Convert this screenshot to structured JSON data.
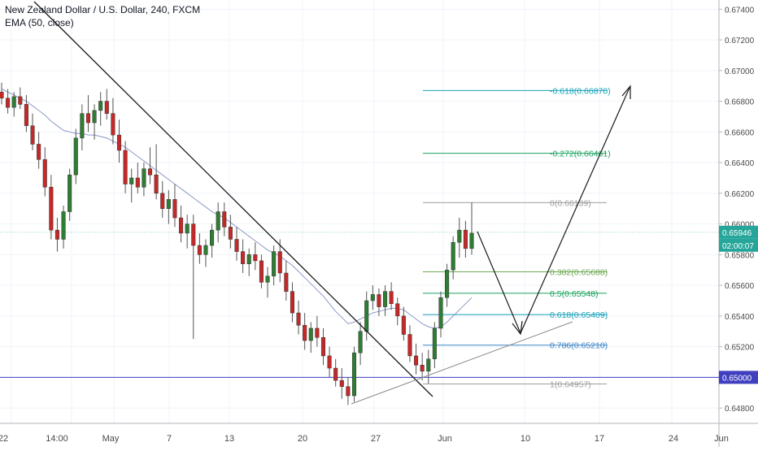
{
  "chart_data": {
    "type": "candlestick",
    "title": "New Zealand Dollar / U.S. Dollar, 240, FXCM",
    "indicator_label": "EMA (50, close)",
    "ylim": [
      0.647,
      0.6746
    ],
    "y_ticks": [
      "0.67400",
      "0.67200",
      "0.67000",
      "0.66800",
      "0.66600",
      "0.66400",
      "0.66200",
      "0.66000",
      "0.65800",
      "0.65600",
      "0.65400",
      "0.65200",
      "0.65000",
      "0.64800"
    ],
    "x_ticks": [
      "22",
      "14:00",
      "May",
      "7",
      "13",
      "20",
      "27",
      "Jun",
      "10",
      "17",
      "24",
      "Jun"
    ],
    "current_price": "0.65946",
    "countdown": "02:00:07",
    "level_label": "0.65000",
    "horizontal_level": 0.65,
    "fibonacci": [
      {
        "ratio": "-0.618",
        "price": "0.66870",
        "label": "-0.618(0.66870)",
        "value": 0.6687,
        "color": "#17a2b8"
      },
      {
        "ratio": "-0.272",
        "price": "0.66461",
        "label": "-0.272(0.66461)",
        "value": 0.66461,
        "color": "#1aa260"
      },
      {
        "ratio": "0",
        "price": "0.66139",
        "label": "0(0.66139)",
        "value": 0.66139,
        "color": "#9e9e9e"
      },
      {
        "ratio": "0.382",
        "price": "0.65688",
        "label": "0.382(0.65688)",
        "value": 0.65688,
        "color": "#6aa84f"
      },
      {
        "ratio": "0.5",
        "price": "0.65548",
        "label": "0.5(0.65548)",
        "value": 0.65548,
        "color": "#1aa260"
      },
      {
        "ratio": "0.618",
        "price": "0.65409",
        "label": "0.618(0.65409)",
        "value": 0.65409,
        "color": "#17a2b8"
      },
      {
        "ratio": "0.786",
        "price": "0.65210",
        "label": "0.786(0.65210)",
        "value": 0.6521,
        "color": "#3d85c6"
      },
      {
        "ratio": "1",
        "price": "0.64957",
        "label": "1(0.64957)",
        "value": 0.64957,
        "color": "#9e9e9e"
      }
    ],
    "candles": [
      [
        0.6686,
        0.6692,
        0.6678,
        0.6682
      ],
      [
        0.6682,
        0.6688,
        0.6672,
        0.6676
      ],
      [
        0.6676,
        0.6686,
        0.667,
        0.6683
      ],
      [
        0.6683,
        0.6689,
        0.6675,
        0.6678
      ],
      [
        0.6678,
        0.6684,
        0.666,
        0.6664
      ],
      [
        0.6664,
        0.6672,
        0.6648,
        0.6652
      ],
      [
        0.6652,
        0.666,
        0.6636,
        0.6642
      ],
      [
        0.6642,
        0.665,
        0.6618,
        0.6624
      ],
      [
        0.6624,
        0.6632,
        0.659,
        0.6596
      ],
      [
        0.6596,
        0.6604,
        0.6582,
        0.659
      ],
      [
        0.659,
        0.6612,
        0.6584,
        0.6608
      ],
      [
        0.6608,
        0.6636,
        0.6602,
        0.6632
      ],
      [
        0.6632,
        0.6662,
        0.6626,
        0.6656
      ],
      [
        0.6656,
        0.6678,
        0.6648,
        0.6672
      ],
      [
        0.6672,
        0.6684,
        0.666,
        0.6666
      ],
      [
        0.6666,
        0.6678,
        0.6655,
        0.6674
      ],
      [
        0.6674,
        0.6686,
        0.6664,
        0.668
      ],
      [
        0.668,
        0.6688,
        0.6668,
        0.6672
      ],
      [
        0.6672,
        0.6682,
        0.6652,
        0.6658
      ],
      [
        0.6658,
        0.6668,
        0.664,
        0.6648
      ],
      [
        0.6648,
        0.6654,
        0.662,
        0.6626
      ],
      [
        0.6626,
        0.6636,
        0.6614,
        0.663
      ],
      [
        0.663,
        0.664,
        0.662,
        0.6624
      ],
      [
        0.6624,
        0.664,
        0.6618,
        0.6636
      ],
      [
        0.6636,
        0.665,
        0.6626,
        0.6632
      ],
      [
        0.6632,
        0.6652,
        0.6616,
        0.662
      ],
      [
        0.662,
        0.6628,
        0.6604,
        0.661
      ],
      [
        0.661,
        0.6622,
        0.66,
        0.6616
      ],
      [
        0.6616,
        0.6626,
        0.6598,
        0.6604
      ],
      [
        0.6604,
        0.6612,
        0.6588,
        0.6594
      ],
      [
        0.6594,
        0.6606,
        0.6584,
        0.66
      ],
      [
        0.66,
        0.6606,
        0.6525,
        0.6586
      ],
      [
        0.6586,
        0.6594,
        0.6574,
        0.658
      ],
      [
        0.658,
        0.659,
        0.6572,
        0.6586
      ],
      [
        0.6586,
        0.66,
        0.6578,
        0.6596
      ],
      [
        0.6596,
        0.6614,
        0.6588,
        0.6608
      ],
      [
        0.6608,
        0.6614,
        0.6592,
        0.6598
      ],
      [
        0.6598,
        0.6606,
        0.6584,
        0.659
      ],
      [
        0.659,
        0.6598,
        0.6576,
        0.6582
      ],
      [
        0.6582,
        0.659,
        0.6568,
        0.6574
      ],
      [
        0.6574,
        0.6584,
        0.6566,
        0.658
      ],
      [
        0.658,
        0.6588,
        0.657,
        0.6576
      ],
      [
        0.6576,
        0.658,
        0.6558,
        0.6562
      ],
      [
        0.6562,
        0.6572,
        0.6552,
        0.6566
      ],
      [
        0.6566,
        0.6586,
        0.656,
        0.6582
      ],
      [
        0.6582,
        0.659,
        0.6562,
        0.6568
      ],
      [
        0.6568,
        0.6576,
        0.655,
        0.6556
      ],
      [
        0.6556,
        0.6562,
        0.6536,
        0.6542
      ],
      [
        0.6542,
        0.655,
        0.6528,
        0.6534
      ],
      [
        0.6534,
        0.6542,
        0.6518,
        0.6524
      ],
      [
        0.6524,
        0.6536,
        0.6516,
        0.6532
      ],
      [
        0.6532,
        0.654,
        0.652,
        0.6526
      ],
      [
        0.6526,
        0.6532,
        0.6508,
        0.6514
      ],
      [
        0.6514,
        0.652,
        0.65,
        0.6506
      ],
      [
        0.6506,
        0.6512,
        0.6494,
        0.6498
      ],
      [
        0.6498,
        0.6506,
        0.6486,
        0.6494
      ],
      [
        0.6494,
        0.65,
        0.6482,
        0.6488
      ],
      [
        0.6488,
        0.652,
        0.6484,
        0.6516
      ],
      [
        0.6516,
        0.6536,
        0.6508,
        0.653
      ],
      [
        0.653,
        0.6556,
        0.6524,
        0.655
      ],
      [
        0.655,
        0.656,
        0.6544,
        0.6554
      ],
      [
        0.6554,
        0.6558,
        0.654,
        0.6546
      ],
      [
        0.6546,
        0.656,
        0.654,
        0.6556
      ],
      [
        0.6556,
        0.6562,
        0.6544,
        0.6548
      ],
      [
        0.6548,
        0.6552,
        0.6534,
        0.654
      ],
      [
        0.654,
        0.6546,
        0.6524,
        0.6528
      ],
      [
        0.6528,
        0.6534,
        0.651,
        0.6514
      ],
      [
        0.6514,
        0.6522,
        0.6502,
        0.6508
      ],
      [
        0.6508,
        0.6516,
        0.6498,
        0.6504
      ],
      [
        0.6504,
        0.6518,
        0.6496,
        0.6512
      ],
      [
        0.6512,
        0.6536,
        0.6506,
        0.6532
      ],
      [
        0.6532,
        0.6556,
        0.6526,
        0.6552
      ],
      [
        0.6552,
        0.6574,
        0.6546,
        0.657
      ],
      [
        0.657,
        0.6592,
        0.6564,
        0.6588
      ],
      [
        0.6588,
        0.6604,
        0.6578,
        0.6596
      ],
      [
        0.6596,
        0.6602,
        0.6578,
        0.6584
      ],
      [
        0.6584,
        0.6614,
        0.658,
        0.6594
      ]
    ],
    "ema": [
      0.6688,
      0.6686,
      0.6684,
      0.6682,
      0.668,
      0.6677,
      0.6674,
      0.6671,
      0.6667,
      0.6664,
      0.6661,
      0.666,
      0.6659,
      0.6659,
      0.6658,
      0.6658,
      0.6657,
      0.6656,
      0.6654,
      0.6652,
      0.665,
      0.6647,
      0.6644,
      0.6641,
      0.6638,
      0.6635,
      0.6632,
      0.6629,
      0.6626,
      0.6623,
      0.662,
      0.6617,
      0.6614,
      0.6611,
      0.6608,
      0.6606,
      0.6604,
      0.6601,
      0.6598,
      0.6595,
      0.6592,
      0.6589,
      0.6586,
      0.6583,
      0.6581,
      0.6579,
      0.6576,
      0.6573,
      0.6569,
      0.6565,
      0.6561,
      0.6557,
      0.6553,
      0.6548,
      0.6543,
      0.6539,
      0.6535,
      0.6536,
      0.6538,
      0.654,
      0.6542,
      0.6543,
      0.6544,
      0.6545,
      0.6545,
      0.6544,
      0.6541,
      0.6538,
      0.6535,
      0.6533,
      0.6532,
      0.6533,
      0.6536,
      0.654,
      0.6544,
      0.6548,
      0.6552
    ]
  }
}
